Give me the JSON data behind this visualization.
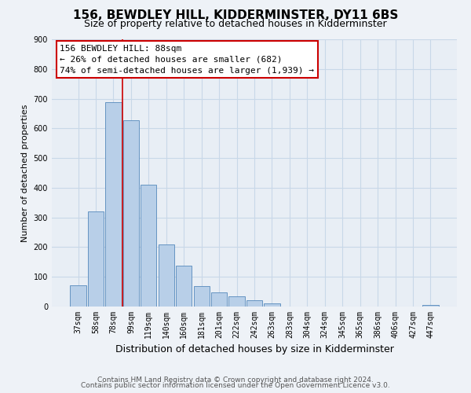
{
  "title": "156, BEWDLEY HILL, KIDDERMINSTER, DY11 6BS",
  "subtitle": "Size of property relative to detached houses in Kidderminster",
  "xlabel": "Distribution of detached houses by size in Kidderminster",
  "ylabel": "Number of detached properties",
  "bar_labels": [
    "37sqm",
    "58sqm",
    "78sqm",
    "99sqm",
    "119sqm",
    "140sqm",
    "160sqm",
    "181sqm",
    "201sqm",
    "222sqm",
    "242sqm",
    "263sqm",
    "283sqm",
    "304sqm",
    "324sqm",
    "345sqm",
    "365sqm",
    "386sqm",
    "406sqm",
    "427sqm",
    "447sqm"
  ],
  "bar_values": [
    72,
    320,
    688,
    628,
    410,
    210,
    138,
    68,
    48,
    35,
    22,
    10,
    1,
    0,
    0,
    0,
    0,
    0,
    0,
    0,
    5
  ],
  "bar_color": "#b8cfe8",
  "bar_edge_color": "#5588bb",
  "vline_x": 2.5,
  "vline_color": "#cc0000",
  "annotation_title": "156 BEWDLEY HILL: 88sqm",
  "annotation_line1": "← 26% of detached houses are smaller (682)",
  "annotation_line2": "74% of semi-detached houses are larger (1,939) →",
  "annotation_box_facecolor": "#ffffff",
  "annotation_box_edgecolor": "#cc0000",
  "ylim": [
    0,
    900
  ],
  "yticks": [
    0,
    100,
    200,
    300,
    400,
    500,
    600,
    700,
    800,
    900
  ],
  "footer1": "Contains HM Land Registry data © Crown copyright and database right 2024.",
  "footer2": "Contains public sector information licensed under the Open Government Licence v3.0.",
  "title_fontsize": 11,
  "subtitle_fontsize": 9,
  "xlabel_fontsize": 9,
  "ylabel_fontsize": 8,
  "tick_fontsize": 7,
  "annot_fontsize": 8,
  "footer_fontsize": 6.5,
  "background_color": "#eef2f7",
  "plot_bg_color": "#e8eef5",
  "grid_color": "#c8d8e8"
}
